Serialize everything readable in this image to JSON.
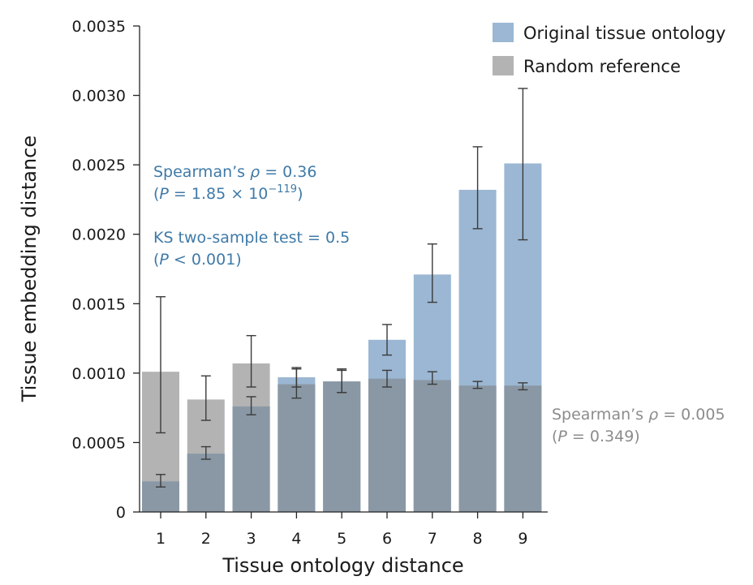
{
  "chart_data": {
    "type": "bar",
    "xlabel": "Tissue ontology distance",
    "ylabel": "Tissue embedding distance",
    "ylim": [
      0,
      0.0035
    ],
    "yticks": [
      "0",
      "0.0005",
      "0.0010",
      "0.0015",
      "0.0020",
      "0.0025",
      "0.0030",
      "0.0035"
    ],
    "categories": [
      "1",
      "2",
      "3",
      "4",
      "5",
      "6",
      "7",
      "8",
      "9"
    ],
    "series": [
      {
        "name": "Original tissue ontology",
        "color": "#9bb7d3",
        "values": [
          0.00022,
          0.00042,
          0.00076,
          0.00097,
          0.00094,
          0.00124,
          0.00171,
          0.00232,
          0.00251
        ],
        "err_low": [
          0.00018,
          0.00038,
          0.0007,
          0.0009,
          0.00086,
          0.00113,
          0.00151,
          0.00204,
          0.00196
        ],
        "err_high": [
          0.00027,
          0.00047,
          0.00083,
          0.00104,
          0.00102,
          0.00135,
          0.00193,
          0.00263,
          0.00305
        ]
      },
      {
        "name": "Random reference",
        "color": "#b3b3b3",
        "values": [
          0.00101,
          0.00081,
          0.00107,
          0.00092,
          0.00094,
          0.00096,
          0.00095,
          0.00091,
          0.00091
        ],
        "err_low": [
          0.00057,
          0.00066,
          0.0009,
          0.00082,
          0.00086,
          0.0009,
          0.00092,
          0.00089,
          0.00088
        ],
        "err_high": [
          0.00155,
          0.00098,
          0.00127,
          0.00103,
          0.00103,
          0.00102,
          0.00101,
          0.00094,
          0.00093
        ]
      }
    ],
    "legend_position": "top-right",
    "annotations": {
      "blue_line1_prefix": "Spearman’s ",
      "blue_line1_rho": "ρ",
      "blue_line1_value": " = 0.36",
      "blue_line2_open": "(",
      "blue_line2_p": "P",
      "blue_line2_value": " = 1.85 × 10",
      "blue_line2_exp": "−119",
      "blue_line2_close": ")",
      "blue_line3": "KS two-sample test = 0.5",
      "blue_line4_open": "(",
      "blue_line4_p": "P",
      "blue_line4_value": " < 0.001)",
      "gray_line1_prefix": "Spearman’s ",
      "gray_line1_rho": "ρ",
      "gray_line1_value": " = 0.005",
      "gray_line2_open": "(",
      "gray_line2_p": "P",
      "gray_line2_value": " = 0.349)"
    },
    "overlap_color": "#8a98a5"
  }
}
